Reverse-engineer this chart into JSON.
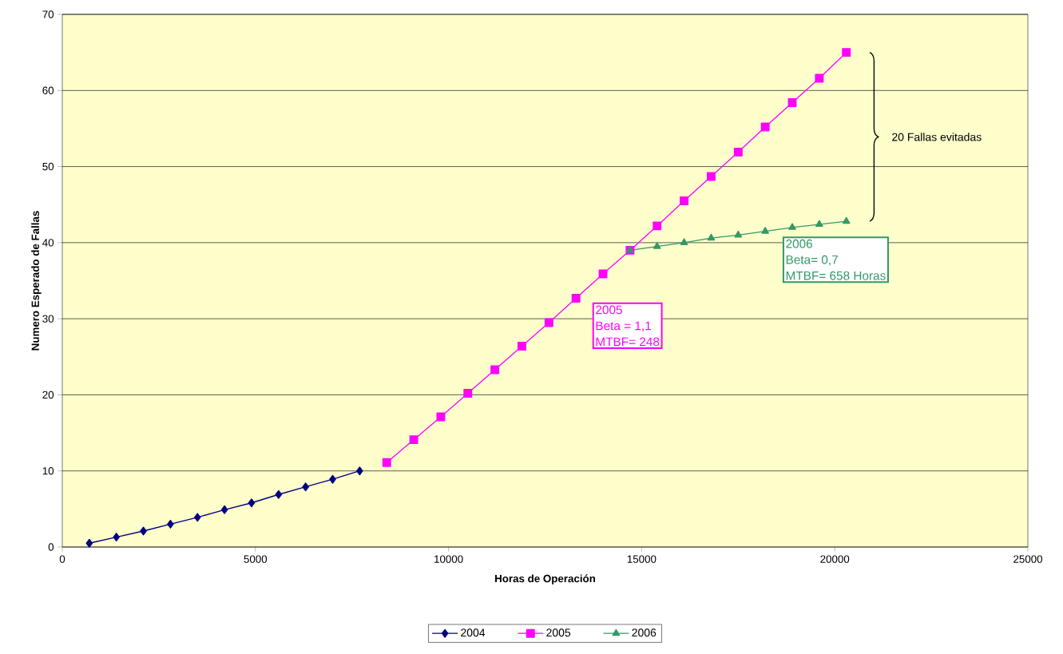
{
  "chart_data": {
    "type": "line",
    "xlabel": "Horas de Operación",
    "ylabel": "Numero Esperado de Fallas",
    "xlim": [
      0,
      25000
    ],
    "xticks": [
      0,
      5000,
      10000,
      15000,
      20000,
      25000
    ],
    "ylim": [
      0,
      70
    ],
    "yticks": [
      0,
      10,
      20,
      30,
      40,
      50,
      60,
      70
    ],
    "grid": "y",
    "legend": "bottom",
    "series": [
      {
        "name": "2004",
        "color": "#000080",
        "marker": "diamond",
        "x": [
          700,
          1400,
          2100,
          2800,
          3500,
          4200,
          4900,
          5600,
          6300,
          7000,
          7700
        ],
        "values": [
          0.5,
          1.3,
          2.1,
          3.0,
          3.9,
          4.9,
          5.8,
          6.9,
          7.9,
          8.9,
          10.0
        ]
      },
      {
        "name": "2005",
        "color": "#ff00ff",
        "marker": "square",
        "x": [
          8400,
          9100,
          9800,
          10500,
          11200,
          11900,
          12600,
          13300,
          14000,
          14700,
          15400,
          16100,
          16800,
          17500,
          18200,
          18900,
          19600,
          20300
        ],
        "values": [
          11.1,
          14.1,
          17.1,
          20.2,
          23.3,
          26.4,
          29.5,
          32.7,
          35.9,
          39.0,
          42.2,
          45.5,
          48.7,
          51.9,
          55.2,
          58.4,
          61.6,
          65.0
        ]
      },
      {
        "name": "2006",
        "color": "#339966",
        "marker": "triangle",
        "x": [
          14700,
          15400,
          16100,
          16800,
          17500,
          18200,
          18900,
          19600,
          20300
        ],
        "values": [
          39.0,
          39.5,
          40.0,
          40.6,
          41.0,
          41.5,
          42.0,
          42.4,
          42.8
        ]
      }
    ],
    "annotations": [
      "2005",
      "Beta = 1,1",
      "MTBF= 248",
      "2006",
      "Beta= 0,7",
      "MTBF= 658 Horas",
      "20 Fallas evitadas"
    ]
  }
}
